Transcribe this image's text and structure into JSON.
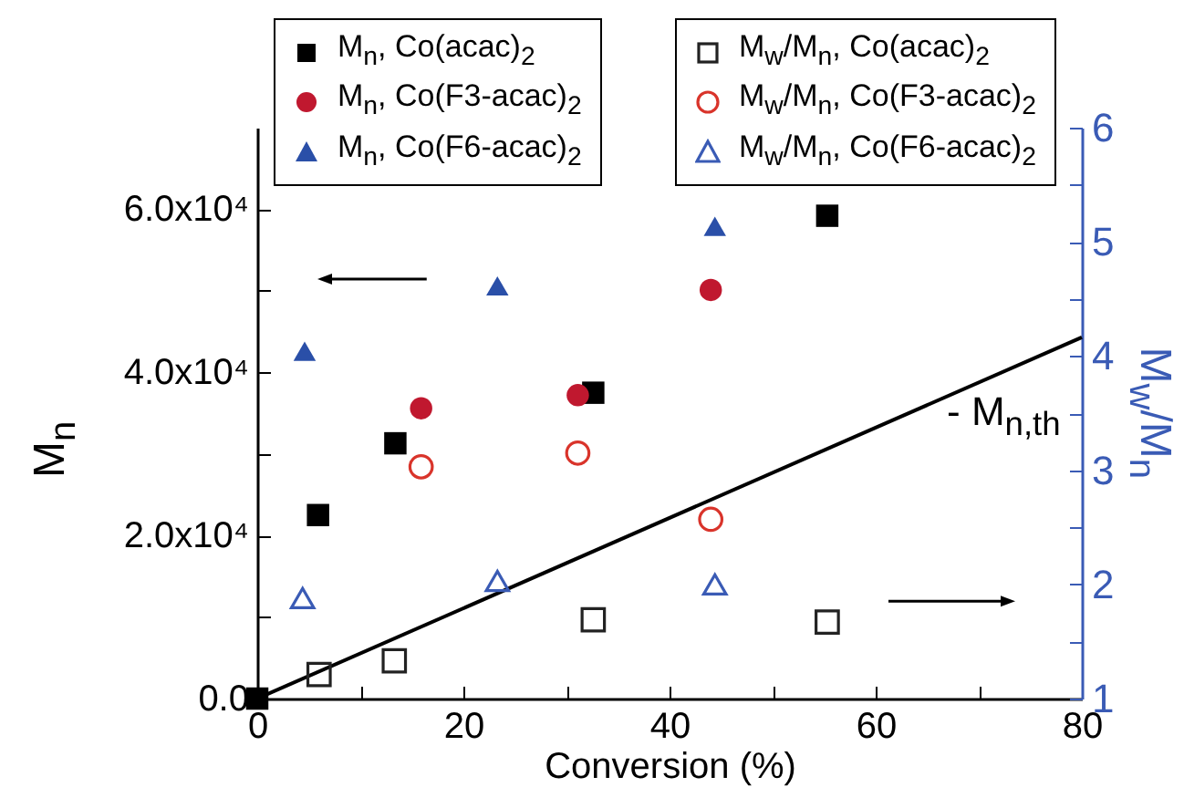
{
  "chart_data": {
    "type": "scatter",
    "xlabel": "Conversion (%)",
    "ylabel": "M$_{n}$",
    "y2label": "M$_{w}$/M$_{n}$",
    "xlim": [
      0,
      80
    ],
    "xticks": [
      0,
      {
        "value": 10,
        "label": null
      },
      20,
      {
        "value": 30,
        "label": null
      },
      40,
      {
        "value": 50,
        "label": null
      },
      60,
      {
        "value": 70,
        "label": null
      },
      80
    ],
    "ylim": [
      0,
      70000
    ],
    "yticks": [
      {
        "value": 0,
        "label": "0.0"
      },
      {
        "value": 10000,
        "label": null
      },
      {
        "value": 20000,
        "label": "2.0x10⁴"
      },
      {
        "value": 30000,
        "label": null
      },
      {
        "value": 40000,
        "label": "4.0x10⁴"
      },
      {
        "value": 50000,
        "label": null
      },
      {
        "value": 60000,
        "label": "6.0x10⁴"
      }
    ],
    "y2lim": [
      1,
      6
    ],
    "y2ticks": [
      1,
      {
        "value": 1.5,
        "label": null
      },
      2,
      {
        "value": 2.5,
        "label": null
      },
      3,
      {
        "value": 3.5,
        "label": null
      },
      4,
      {
        "value": 4.5,
        "label": null
      },
      5,
      {
        "value": 5.5,
        "label": null
      },
      6
    ],
    "legend": "top",
    "grid": false,
    "series": [
      {
        "name": "M$_{n}$, Co(acac)$_{2}$",
        "color": "#000000",
        "marker": "square",
        "x": [
          0,
          5.9,
          13.4,
          32.6,
          55.3
        ],
        "values": [
          0,
          22500,
          31300,
          37500,
          59200
        ]
      },
      {
        "name": "M$_{n}$, Co(F3-acac)$_{2}$",
        "color": "#c0182f",
        "marker": "circle",
        "x": [
          15.9,
          31.1,
          44.0
        ],
        "values": [
          35600,
          37200,
          50100
        ]
      },
      {
        "name": "M$_{n}$, Co(F6-acac)$_{2}$",
        "color": "#2a4fa8",
        "marker": "triangle",
        "x": [
          4.6,
          23.3,
          44.4
        ],
        "values": [
          42600,
          50600,
          57900
        ]
      },
      {
        "name": "M$_{w}$/M$_{n}$, Co(acac)$_{2}$",
        "color": "#222222",
        "marker": "square",
        "axis": "y2",
        "x": [
          6.0,
          13.3,
          32.6,
          55.3
        ],
        "values": [
          1.21,
          1.33,
          1.69,
          1.67
        ]
      },
      {
        "name": "M$_{w}$/M$_{n}$, Co(F3-acac)$_{2}$",
        "color": "#d9342b",
        "marker": "circle",
        "axis": "y2",
        "x": [
          15.9,
          31.1,
          44.0
        ],
        "values": [
          3.03,
          3.15,
          2.57
        ]
      },
      {
        "name": "M$_{w}$/M$_{n}$, Co(F6-acac)$_{2}$",
        "color": "#3a5bb5",
        "marker": "triangle",
        "axis": "y2",
        "x": [
          4.4,
          23.3,
          44.4
        ],
        "values": [
          1.88,
          2.03,
          2.0
        ]
      },
      {
        "name": "- M$_{n,th}$",
        "type": "line",
        "color": "#000000",
        "line_style": "solid",
        "x": [
          0,
          80
        ],
        "values": [
          0,
          44300
        ]
      }
    ]
  }
}
